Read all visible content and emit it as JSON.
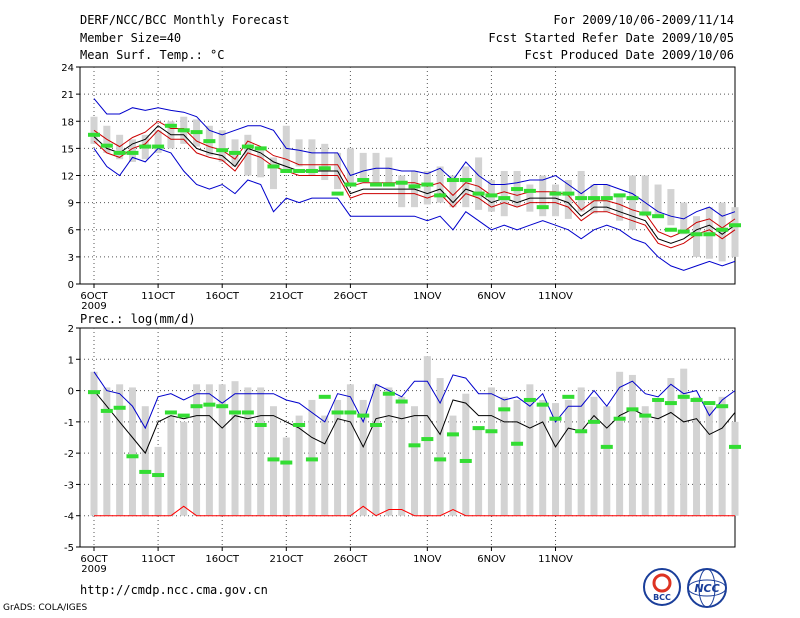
{
  "header": {
    "title": "DERF/NCC/BCC Monthly Forecast",
    "member_size": "Member Size=40",
    "variable": "Mean Surf. Temp.: °C",
    "period": "For 2009/10/06-2009/11/14",
    "started": "Fcst Started Refer Date 2009/10/05",
    "produced": "Fcst Produced Date 2009/10/06"
  },
  "footer": {
    "url": "http://cmdp.ncc.cma.gov.cn",
    "grads": "GrADS: COLA/IGES",
    "logo_bcc": "BCC",
    "logo_ncc": "NCC"
  },
  "colors": {
    "box": "#d3d3d3",
    "median": "#000000",
    "mean_band": "#cc0000",
    "extreme": "#0000cc",
    "obs": "#33dd33",
    "low_line": "#ff0000"
  },
  "chart_data": [
    {
      "type": "box",
      "title": "Mean Surf. Temp.: °C",
      "ylim": [
        0,
        24
      ],
      "yticks": [
        "0",
        "3",
        "6",
        "9",
        "12",
        "15",
        "18",
        "21",
        "24"
      ],
      "xtick_labels": [
        "6OCT",
        "11OCT",
        "16OCT",
        "21OCT",
        "26OCT",
        "1NOV",
        "6NOV",
        "11NOV"
      ],
      "xtick_year": "2009",
      "box_low": [
        15.5,
        14.5,
        13.8,
        13.5,
        13.8,
        14.5,
        15.0,
        15.5,
        15.2,
        14.2,
        13.5,
        13.0,
        12.0,
        11.8,
        10.5,
        12.5,
        13.0,
        12.0,
        11.5,
        10.5,
        11.0,
        11.2,
        11.0,
        10.8,
        8.5,
        8.5,
        8.8,
        9.0,
        8.5,
        8.5,
        8.2,
        8.0,
        7.5,
        8.5,
        8.0,
        7.5,
        7.5,
        7.2,
        8.0,
        7.8,
        8.0,
        7.0,
        6.0,
        7.5,
        7.5,
        6.5,
        5.5,
        3.0,
        2.8,
        2.5,
        3.0
      ],
      "box_high": [
        18.5,
        17.5,
        16.5,
        16.0,
        16.5,
        17.0,
        18.0,
        18.5,
        18.2,
        17.5,
        17.0,
        16.0,
        16.5,
        15.0,
        14.0,
        17.5,
        16.0,
        16.0,
        15.5,
        14.5,
        15.0,
        14.5,
        14.5,
        14.0,
        12.0,
        12.5,
        12.5,
        13.0,
        12.0,
        13.0,
        14.0,
        11.5,
        12.5,
        12.5,
        11.0,
        12.0,
        11.0,
        11.5,
        12.5,
        11.0,
        11.0,
        10.0,
        12.0,
        12.0,
        11.0,
        10.5,
        9.0,
        7.5,
        8.5,
        9.0,
        8.5
      ],
      "median": [
        16.3,
        15.0,
        14.5,
        15.5,
        16.0,
        17.5,
        16.5,
        16.5,
        15.0,
        14.5,
        14.2,
        13.0,
        15.0,
        14.5,
        13.5,
        13.0,
        12.5,
        12.5,
        12.5,
        12.5,
        10.0,
        10.5,
        10.5,
        10.5,
        10.5,
        10.5,
        10.0,
        10.5,
        9.0,
        10.5,
        10.0,
        9.0,
        9.5,
        9.0,
        9.5,
        9.5,
        9.5,
        9.0,
        7.5,
        8.5,
        8.5,
        8.0,
        7.5,
        7.0,
        5.0,
        4.5,
        5.0,
        6.0,
        6.5,
        5.5,
        6.5
      ],
      "mean_upper": [
        17.0,
        16.0,
        15.2,
        16.2,
        16.8,
        18.0,
        17.2,
        17.2,
        15.8,
        15.2,
        14.8,
        13.8,
        15.8,
        15.2,
        14.2,
        13.8,
        13.2,
        13.2,
        13.2,
        13.2,
        10.8,
        11.2,
        11.2,
        11.2,
        11.2,
        11.2,
        10.8,
        11.2,
        9.8,
        11.2,
        10.8,
        9.8,
        10.2,
        9.8,
        10.2,
        10.2,
        10.2,
        9.8,
        8.2,
        9.2,
        9.2,
        8.8,
        8.2,
        7.8,
        5.8,
        5.2,
        5.8,
        6.8,
        7.2,
        6.2,
        7.2
      ],
      "mean_lower": [
        15.8,
        14.5,
        14.0,
        15.0,
        15.5,
        17.0,
        16.0,
        16.0,
        14.5,
        14.0,
        13.7,
        12.5,
        14.5,
        14.0,
        13.0,
        12.5,
        12.0,
        12.0,
        12.0,
        12.0,
        9.5,
        10.0,
        10.0,
        10.0,
        10.0,
        10.0,
        9.5,
        10.0,
        8.5,
        10.0,
        9.5,
        8.5,
        9.0,
        8.5,
        9.0,
        9.0,
        9.0,
        8.5,
        7.0,
        8.0,
        8.0,
        7.5,
        7.0,
        6.5,
        4.5,
        4.0,
        4.5,
        5.5,
        6.0,
        5.0,
        6.0
      ],
      "max_line": [
        20.5,
        18.8,
        18.8,
        19.5,
        19.2,
        19.5,
        19.2,
        19.0,
        18.5,
        17.0,
        16.5,
        17.0,
        17.5,
        17.5,
        17.0,
        15.0,
        14.8,
        14.5,
        14.5,
        14.5,
        12.0,
        12.5,
        12.8,
        12.8,
        12.5,
        12.5,
        12.2,
        12.8,
        11.5,
        13.5,
        12.0,
        11.0,
        11.0,
        11.2,
        11.5,
        11.5,
        12.0,
        11.0,
        10.0,
        11.0,
        11.0,
        10.5,
        10.0,
        9.0,
        8.0,
        7.5,
        7.2,
        8.0,
        8.5,
        7.5,
        8.0
      ],
      "min_line": [
        15.0,
        13.0,
        12.0,
        14.0,
        13.5,
        15.0,
        14.5,
        12.5,
        11.0,
        10.5,
        11.0,
        10.0,
        11.5,
        11.0,
        8.0,
        9.5,
        9.0,
        9.5,
        9.5,
        9.5,
        7.5,
        7.5,
        7.5,
        7.5,
        7.5,
        7.5,
        7.0,
        7.5,
        6.0,
        8.0,
        7.0,
        6.0,
        6.5,
        6.0,
        6.5,
        7.0,
        6.5,
        6.0,
        5.0,
        6.0,
        6.5,
        6.0,
        5.0,
        4.5,
        3.0,
        2.0,
        1.5,
        2.0,
        2.5,
        2.0,
        2.5
      ],
      "observed": [
        16.5,
        15.3,
        14.5,
        14.5,
        15.2,
        15.2,
        17.5,
        17.0,
        16.8,
        15.8,
        14.8,
        14.5,
        15.2,
        15.0,
        13.0,
        12.5,
        12.5,
        12.5,
        12.8,
        10.0,
        11.0,
        11.5,
        11.0,
        11.0,
        11.2,
        10.8,
        11.0,
        9.8,
        11.5,
        11.5,
        10.0,
        9.8,
        9.5,
        10.5,
        10.3,
        8.5,
        10.0,
        10.0,
        9.5,
        9.5,
        9.5,
        9.8,
        9.5,
        7.8,
        7.5,
        6.0,
        5.8,
        5.5,
        5.5,
        6.0,
        6.5
      ]
    },
    {
      "type": "box",
      "title": "Prec.: log(mm/d)",
      "ylim": [
        -5,
        2
      ],
      "yticks": [
        "-5",
        "-4",
        "-3",
        "-2",
        "-1",
        "0",
        "1",
        "2"
      ],
      "xtick_labels": [
        "6OCT",
        "11OCT",
        "16OCT",
        "21OCT",
        "26OCT",
        "1NOV",
        "6NOV",
        "11NOV"
      ],
      "xtick_year": "2009",
      "box_top": [
        0.6,
        0.1,
        0.2,
        0.1,
        -0.5,
        -1.8,
        -0.8,
        -1.0,
        0.2,
        0.2,
        0.2,
        0.3,
        0.1,
        0.1,
        -0.5,
        -1.5,
        -0.8,
        -0.3,
        -0.8,
        -0.3,
        0.2,
        -0.3,
        0.2,
        0.1,
        -0.2,
        -0.5,
        1.1,
        0.4,
        -0.8,
        -0.1,
        -1.2,
        0.1,
        -0.2,
        -0.3,
        0.2,
        -0.3,
        -0.4,
        -0.3,
        0.1,
        -0.2,
        -0.5,
        0.6,
        0.5,
        -0.5,
        -0.3,
        0.4,
        0.7,
        -0.2,
        -0.5,
        -0.2,
        -1.0
      ],
      "median": [
        0.0,
        -0.5,
        -1.0,
        -1.5,
        -2.0,
        -1.0,
        -0.8,
        -0.9,
        -0.8,
        -0.8,
        -1.2,
        -0.8,
        -0.9,
        -0.8,
        -0.8,
        -1.0,
        -1.2,
        -1.5,
        -1.7,
        -0.9,
        -1.0,
        -1.8,
        -0.9,
        -0.8,
        -0.9,
        -0.8,
        -0.8,
        -1.4,
        -0.3,
        -0.4,
        -0.8,
        -0.8,
        -1.0,
        -1.0,
        -1.2,
        -1.0,
        -1.8,
        -1.2,
        -1.3,
        -0.8,
        -1.2,
        -0.8,
        -0.6,
        -0.8,
        -0.9,
        -0.7,
        -1.0,
        -0.9,
        -1.4,
        -1.2,
        -0.7
      ],
      "max_line": [
        0.6,
        0.0,
        -0.1,
        -0.5,
        -1.2,
        -0.2,
        -0.1,
        -0.3,
        -0.1,
        -0.1,
        -0.4,
        -0.1,
        -0.1,
        -0.1,
        -0.1,
        -0.3,
        -0.4,
        -0.7,
        -1.0,
        -0.1,
        -0.2,
        -1.0,
        0.2,
        0.0,
        -0.2,
        0.3,
        0.3,
        -0.4,
        0.5,
        0.4,
        -0.1,
        -0.1,
        -0.3,
        -0.2,
        -0.5,
        -0.1,
        -1.0,
        -0.5,
        -0.5,
        0.0,
        -0.5,
        0.1,
        0.3,
        -0.1,
        -0.2,
        0.2,
        -0.1,
        0.0,
        -0.8,
        -0.3,
        0.0
      ],
      "min_line": [
        -4,
        -4,
        -4,
        -4,
        -4,
        -4,
        -4,
        -4,
        -4,
        -4,
        -4,
        -4,
        -4,
        -4,
        -4,
        -4,
        -4,
        -4,
        -4,
        -4,
        -4,
        -4,
        -4,
        -4,
        -4,
        -4,
        -4,
        -4,
        -4,
        -4,
        -4,
        -4,
        -4,
        -4,
        -4,
        -4,
        -4,
        -4,
        -4,
        -4,
        -4,
        -4,
        -4,
        -4,
        -4,
        -4,
        -4,
        -4,
        -4,
        -4,
        -4
      ],
      "low_spikes": [
        {
          "day": 7,
          "value": -3.7
        },
        {
          "day": 21,
          "value": -3.7
        },
        {
          "day": 23,
          "value": -3.8
        },
        {
          "day": 24,
          "value": -3.8
        },
        {
          "day": 28,
          "value": -3.8
        }
      ],
      "observed": [
        -0.05,
        -0.65,
        -0.55,
        -2.1,
        -2.6,
        -2.7,
        -0.7,
        -0.8,
        -0.5,
        -0.45,
        -0.5,
        -0.7,
        -0.7,
        -1.1,
        -2.2,
        -2.3,
        -1.1,
        -2.2,
        -0.2,
        -0.7,
        -0.7,
        -0.8,
        -1.1,
        -0.1,
        -0.35,
        -1.75,
        -1.55,
        -2.2,
        -1.4,
        -2.25,
        -1.2,
        -1.3,
        -0.6,
        -1.7,
        -0.3,
        -0.45,
        -0.9,
        -0.2,
        -1.3,
        -1.0,
        -1.8,
        -0.9,
        -0.6,
        -0.8,
        -0.3,
        -0.4,
        -0.2,
        -0.3,
        -0.4,
        -0.5,
        -1.8
      ]
    }
  ]
}
